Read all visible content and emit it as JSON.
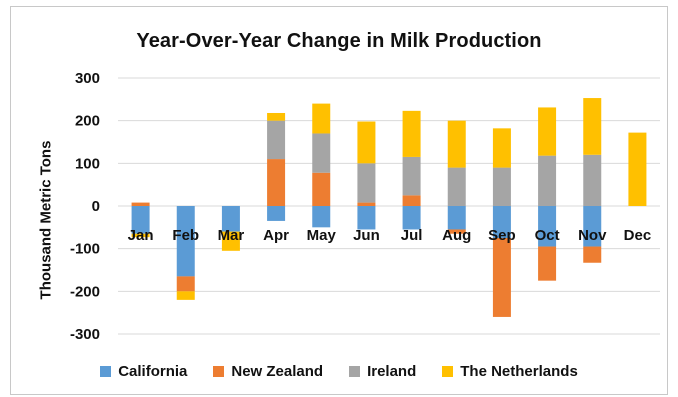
{
  "chart_data": {
    "type": "bar",
    "stacked": true,
    "title": "Year-Over-Year Change in Milk Production",
    "xlabel": "",
    "ylabel": "Thousand Metric Tons",
    "ylim": [
      -300,
      300
    ],
    "yticks": [
      300,
      200,
      100,
      0,
      -100,
      -200,
      -300
    ],
    "grid": true,
    "legend_position": "bottom",
    "categories": [
      "Jan",
      "Feb",
      "Mar",
      "Apr",
      "May",
      "Jun",
      "Jul",
      "Aug",
      "Sep",
      "Oct",
      "Nov",
      "Dec"
    ],
    "series": [
      {
        "name": "California",
        "color": "#5B9BD5",
        "values": [
          -65,
          -165,
          -60,
          -35,
          -50,
          -55,
          -55,
          -55,
          -75,
          -95,
          -95,
          0
        ]
      },
      {
        "name": "New Zealand",
        "color": "#ED7D31",
        "values": [
          8,
          -35,
          0,
          110,
          78,
          8,
          25,
          -10,
          -185,
          -80,
          -38,
          0
        ]
      },
      {
        "name": "Ireland",
        "color": "#A5A5A5",
        "values": [
          0,
          0,
          0,
          90,
          92,
          92,
          90,
          90,
          90,
          118,
          120,
          0
        ]
      },
      {
        "name": "The Netherlands",
        "color": "#FFC000",
        "values": [
          -8,
          -20,
          -45,
          18,
          70,
          98,
          108,
          110,
          92,
          113,
          133,
          172
        ]
      }
    ]
  }
}
